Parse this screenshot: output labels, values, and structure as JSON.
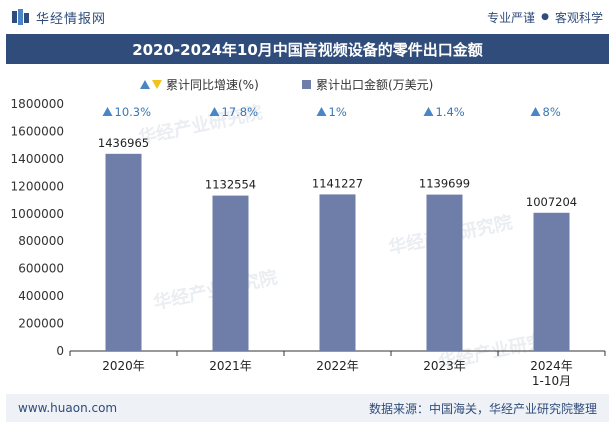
{
  "header": {
    "brand_name": "华经情报网",
    "slogan_left": "专业严谨",
    "slogan_dot": "●",
    "slogan_right": "客观科学"
  },
  "title": "2020-2024年10月中国音视频设备的零件出口金额",
  "footer": {
    "website": "www.huaon.com",
    "source": "数据来源：中国海关，华经产业研究院整理"
  },
  "watermark": "华经产业研究院",
  "colors": {
    "brand": "#2f4c7a",
    "bar": "#6e7ea8",
    "growth_label": "#3a78b5",
    "triangle_up": "#4a86c5",
    "triangle_down": "#f1c21b"
  },
  "chart_data": {
    "type": "bar",
    "title": "2020-2024年10月中国音视频设备的零件出口金额",
    "categories": [
      "2020年",
      "2021年",
      "2022年",
      "2023年",
      "2024年\n1-10月"
    ],
    "category_lines": [
      [
        "2020年"
      ],
      [
        "2021年"
      ],
      [
        "2022年"
      ],
      [
        "2023年"
      ],
      [
        "2024年",
        "1-10月"
      ]
    ],
    "series": [
      {
        "name": "累计出口金额(万美元)",
        "kind": "bar",
        "values": [
          1436965,
          1132554,
          1141227,
          1139699,
          1007204
        ]
      },
      {
        "name": "累计同比增速(%)",
        "kind": "label",
        "values": [
          10.3,
          17.8,
          1,
          1.4,
          8
        ]
      }
    ],
    "bar_labels": [
      "1436965",
      "1132554",
      "1141227",
      "1139699",
      "1007204"
    ],
    "growth_labels": [
      "10.3%",
      "17.8%",
      "1%",
      "1.4%",
      "8%"
    ],
    "yticks": [
      "0",
      "200000",
      "400000",
      "600000",
      "800000",
      "1000000",
      "1200000",
      "1400000",
      "1600000",
      "1800000"
    ],
    "ylim": [
      0,
      1800000
    ],
    "legend": [
      {
        "name": "累计同比增速(%)",
        "marker": "triangle"
      },
      {
        "name": "累计出口金额(万美元)",
        "marker": "square"
      }
    ],
    "legend_position": "top",
    "xlabel": "",
    "ylabel": ""
  }
}
